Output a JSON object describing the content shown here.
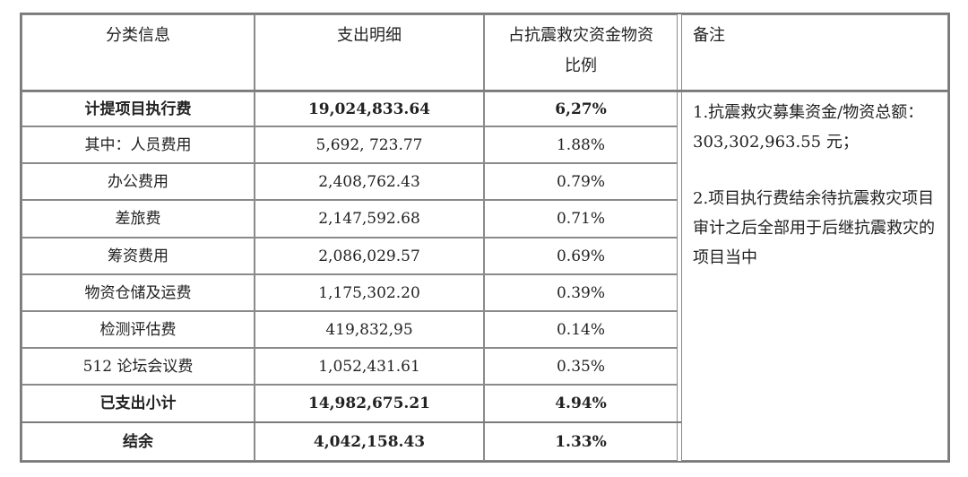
{
  "headers": {
    "category": "分类信息",
    "detail": "支出明细",
    "ratio": "占抗震救灾资金物资比例",
    "remark": "备注"
  },
  "rows": [
    {
      "category": "计提项目执行费",
      "amount": "19,024,833.64",
      "ratio": "6,27%",
      "bold": true
    },
    {
      "category": "其中：人员费用",
      "amount": "5,692, 723.77",
      "ratio": "1.88%",
      "bold": false
    },
    {
      "category": "办公费用",
      "amount": "2,408,762.43",
      "ratio": "0.79%",
      "bold": false
    },
    {
      "category": "差旅费",
      "amount": "2,147,592.68",
      "ratio": "0.71%",
      "bold": false
    },
    {
      "category": "筹资费用",
      "amount": "2,086,029.57",
      "ratio": "0.69%",
      "bold": false
    },
    {
      "category": "物资仓储及运费",
      "amount": "1,175,302.20",
      "ratio": "0.39%",
      "bold": false
    },
    {
      "category": "检测评估费",
      "amount": "419,832,95",
      "ratio": "0.14%",
      "bold": false
    },
    {
      "category": "512 论坛会议费",
      "amount": "1,052,431.61",
      "ratio": "0.35%",
      "bold": false
    },
    {
      "category": "已支出小计",
      "amount": "14,982,675.21",
      "ratio": "4.94%",
      "bold": true
    },
    {
      "category": "结余",
      "amount": "4,042,158.43",
      "ratio": "1.33%",
      "bold": true
    }
  ],
  "remark": {
    "note1": "1.抗震救灾募集资金/物资总额：303,302,963.55 元；",
    "note2": "2.项目执行费结余待抗震救灾项目审计之后全部用于后继抗震救灾的项目当中"
  }
}
